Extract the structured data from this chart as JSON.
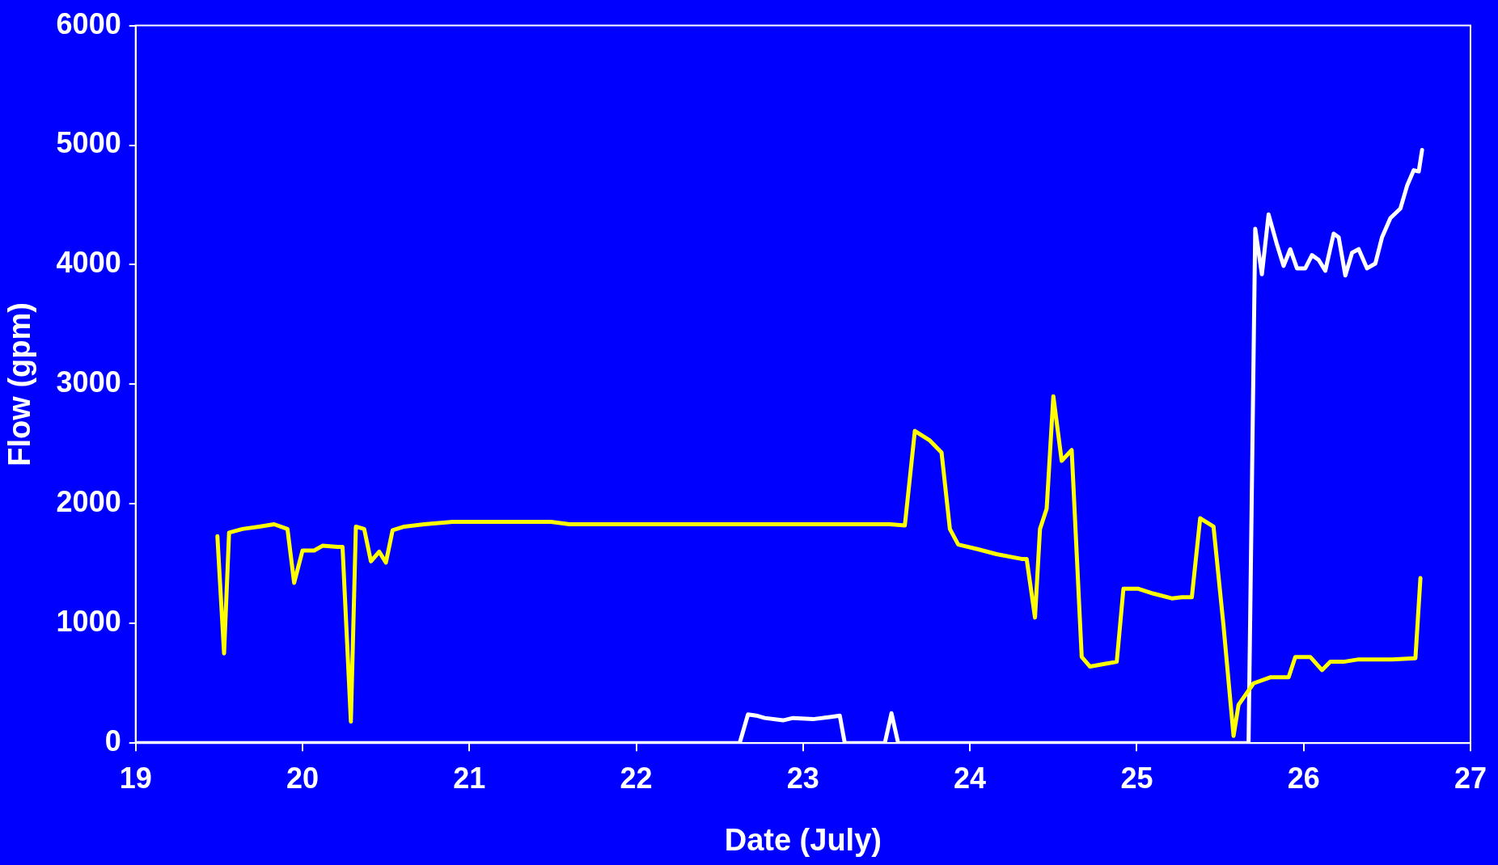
{
  "chart_data": {
    "type": "line",
    "xlabel": "Date (July)",
    "ylabel": "Flow (gpm)",
    "xlim": [
      19,
      27
    ],
    "xticks": [
      19,
      20,
      21,
      22,
      23,
      24,
      25,
      26,
      27
    ],
    "ylim": [
      0,
      6000
    ],
    "yticks": [
      0,
      1000,
      2000,
      3000,
      4000,
      5000,
      6000
    ],
    "grid": false,
    "legend": false,
    "marker": "none",
    "line_style": "solid",
    "series": [
      {
        "color": "#ffff00",
        "x": [
          19.49,
          19.53,
          19.56,
          19.64,
          19.74,
          19.83,
          19.91,
          19.95,
          20.0,
          20.07,
          20.12,
          20.21,
          20.24,
          20.29,
          20.32,
          20.37,
          20.41,
          20.46,
          20.5,
          20.54,
          20.61,
          20.73,
          20.9,
          21.49,
          21.6,
          22.13,
          23.52,
          23.61,
          23.67,
          23.76,
          23.83,
          23.88,
          23.93,
          24.05,
          24.16,
          24.31,
          24.34,
          24.39,
          24.42,
          24.46,
          24.5,
          24.55,
          24.61,
          24.67,
          24.72,
          24.8,
          24.88,
          24.92,
          25.01,
          25.1,
          25.21,
          25.27,
          25.33,
          25.38,
          25.46,
          25.52,
          25.58,
          25.61,
          25.7,
          25.8,
          25.91,
          25.95,
          26.04,
          26.11,
          26.16,
          26.24,
          26.33,
          26.53,
          26.67,
          26.7
        ],
        "values": [
          1730,
          750,
          1760,
          1790,
          1810,
          1830,
          1790,
          1340,
          1610,
          1610,
          1650,
          1640,
          1640,
          180,
          1810,
          1790,
          1520,
          1600,
          1510,
          1780,
          1810,
          1830,
          1850,
          1850,
          1830,
          1830,
          1830,
          1820,
          2610,
          2530,
          2430,
          1790,
          1660,
          1620,
          1580,
          1540,
          1540,
          1050,
          1790,
          1960,
          2900,
          2360,
          2450,
          720,
          640,
          660,
          680,
          1290,
          1290,
          1250,
          1210,
          1220,
          1220,
          1880,
          1810,
          980,
          60,
          320,
          500,
          550,
          550,
          720,
          720,
          610,
          680,
          680,
          700,
          700,
          710,
          1380
        ]
      },
      {
        "color": "#ffffff",
        "x": [
          19,
          22.62,
          22.67,
          22.72,
          22.77,
          22.88,
          22.94,
          23.06,
          23.17,
          23.22,
          23.25,
          23.49,
          23.53,
          23.57,
          25.67,
          25.71,
          25.75,
          25.79,
          25.84,
          25.88,
          25.92,
          25.96,
          26.01,
          26.05,
          26.09,
          26.13,
          26.18,
          26.21,
          26.25,
          26.29,
          26.33,
          26.38,
          26.43,
          26.47,
          26.52,
          26.58,
          26.62,
          26.66,
          26.69,
          26.71
        ],
        "values": [
          0,
          0,
          240,
          230,
          210,
          190,
          210,
          200,
          220,
          230,
          0,
          0,
          250,
          0,
          0,
          4300,
          3920,
          4420,
          4170,
          3990,
          4130,
          3970,
          3970,
          4080,
          4040,
          3950,
          4260,
          4230,
          3910,
          4100,
          4130,
          3970,
          4010,
          4230,
          4390,
          4470,
          4660,
          4790,
          4780,
          4960
        ]
      }
    ]
  }
}
